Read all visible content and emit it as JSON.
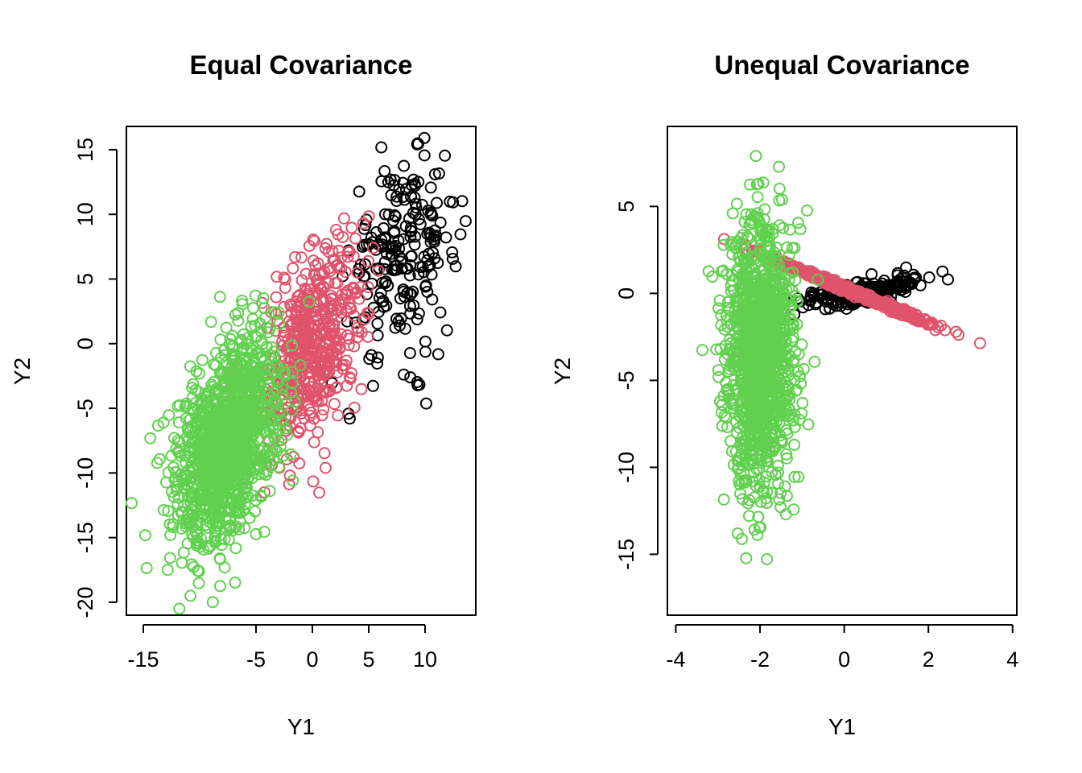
{
  "colors": {
    "black": "#000000",
    "red": "#DF536B",
    "green": "#61D04F"
  },
  "chart_data": [
    {
      "type": "scatter",
      "title": "Equal Covariance",
      "xlabel": "Y1",
      "ylabel": "Y2",
      "xlim": [
        -16.5,
        14.5
      ],
      "ylim": [
        -21,
        16.8
      ],
      "xticks": [
        -15,
        -5,
        0,
        5,
        10
      ],
      "yticks": [
        -20,
        -15,
        -10,
        -5,
        0,
        5,
        10,
        15
      ],
      "grid": false,
      "series": [
        {
          "color": "#000000",
          "n": 220,
          "mean": [
            8,
            7
          ],
          "sd": [
            2.4,
            4
          ],
          "cor": 0.2
        },
        {
          "color": "#DF536B",
          "n": 500,
          "mean": [
            0,
            0
          ],
          "sd": [
            2.3,
            4
          ],
          "cor": 0.45
        },
        {
          "color": "#61D04F",
          "n": 1200,
          "mean": [
            -7.5,
            -7.5
          ],
          "sd": [
            2.3,
            4
          ],
          "cor": 0.45
        }
      ]
    },
    {
      "type": "scatter",
      "title": "Unequal Covariance",
      "xlabel": "Y1",
      "ylabel": "Y2",
      "xlim": [
        -4.2,
        4.1
      ],
      "ylim": [
        -18.5,
        9.6
      ],
      "xticks": [
        -4,
        -2,
        0,
        2,
        4
      ],
      "yticks": [
        -15,
        -10,
        -5,
        0,
        5
      ],
      "grid": false,
      "series": [
        {
          "color": "#000000",
          "n": 220,
          "mean": [
            0.4,
            0.1
          ],
          "sd": [
            0.75,
            0.5
          ],
          "cor": 0.7
        },
        {
          "color": "#DF536B",
          "n": 500,
          "mean": [
            0.2,
            0.1
          ],
          "sd": [
            0.9,
            0.9
          ],
          "cor": -0.995
        },
        {
          "color": "#61D04F",
          "n": 1200,
          "mean": [
            -2.0,
            -3.5
          ],
          "sd": [
            0.4,
            3.8
          ],
          "cor": 0.0
        }
      ]
    }
  ]
}
